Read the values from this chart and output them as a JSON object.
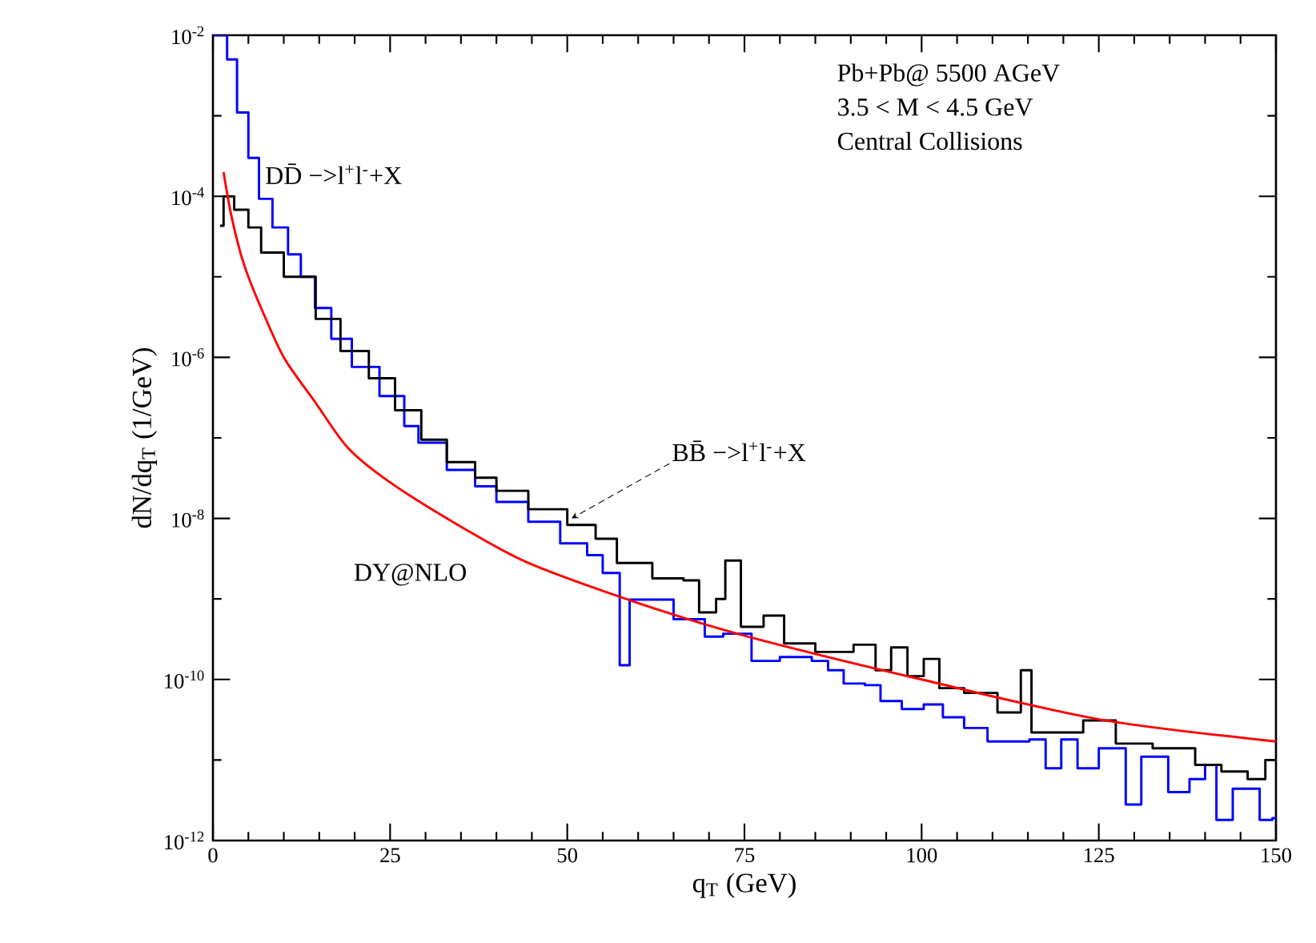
{
  "chart_data": {
    "type": "step",
    "xlabel": "q$_{T}$ (GeV)",
    "ylabel": "dN/dq$_{T}$ (1/GeV)",
    "annotations": [
      "Pb+Pb@ 5500 AGeV",
      "3.5 < M < 4.5 GeV",
      "Central Collisions",
      {
        "text": "BB̄ −>l$^{+}$l$^{-}$+X",
        "x": 50.6,
        "y": 1e-08
      }
    ],
    "log": "y",
    "xlim": [
      0,
      150
    ],
    "ylim": [
      1e-12,
      0.01
    ],
    "xticks": [
      0,
      {
        "value": 5,
        "label": null
      },
      {
        "value": 10,
        "label": null
      },
      {
        "value": 15,
        "label": null
      },
      {
        "value": 20,
        "label": null
      },
      25,
      {
        "value": 30,
        "label": null
      },
      {
        "value": 35,
        "label": null
      },
      {
        "value": 40,
        "label": null
      },
      {
        "value": 45,
        "label": null
      },
      50,
      {
        "value": 55,
        "label": null
      },
      {
        "value": 60,
        "label": null
      },
      {
        "value": 65,
        "label": null
      },
      {
        "value": 70,
        "label": null
      },
      75,
      {
        "value": 80,
        "label": null
      },
      {
        "value": 85,
        "label": null
      },
      {
        "value": 90,
        "label": null
      },
      {
        "value": 95,
        "label": null
      },
      100,
      {
        "value": 105,
        "label": null
      },
      {
        "value": 110,
        "label": null
      },
      {
        "value": 115,
        "label": null
      },
      {
        "value": 120,
        "label": null
      },
      125,
      {
        "value": 130,
        "label": null
      },
      {
        "value": 135,
        "label": null
      },
      {
        "value": 140,
        "label": null
      },
      {
        "value": 145,
        "label": null
      },
      150
    ],
    "yticks": [
      {
        "value": 1e-12,
        "label": "10$^{-12}$"
      },
      {
        "value": 1e-11,
        "label": null
      },
      {
        "value": 1e-10,
        "label": "10$^{-10}$"
      },
      {
        "value": 1e-09,
        "label": null
      },
      {
        "value": 1e-08,
        "label": "10$^{-8}$"
      },
      {
        "value": 1e-07,
        "label": null
      },
      {
        "value": 1e-06,
        "label": "10$^{-6}$"
      },
      {
        "value": 1e-05,
        "label": null
      },
      {
        "value": 0.0001,
        "label": "10$^{-4}$"
      },
      {
        "value": 0.001,
        "label": null
      },
      {
        "value": 0.01,
        "label": "10$^{-2}$"
      }
    ],
    "series": [
      {
        "name": "DD̄ −>l$^{+}$l$^{-}$+X",
        "color": "#0000ff",
        "x": [
          0,
          2,
          3.4,
          5,
          6.5,
          8.4,
          10.6,
          12.4,
          14.4,
          16.7,
          19.6,
          23.5,
          27,
          29,
          33,
          37,
          40,
          44.5,
          49,
          52.8,
          55,
          57.4,
          58.8,
          65,
          69.4,
          72,
          76,
          80,
          84.5,
          86.8,
          89,
          92,
          94.2,
          97.2,
          100.3,
          103,
          106,
          109.3,
          115.2,
          117.5,
          119.7,
          122,
          125,
          128.8,
          131,
          134.8,
          137.8,
          140,
          141.6,
          143.9,
          147.7,
          149.5,
          150
        ],
        "values": [
          0.01,
          0.005,
          0.0011,
          0.0003,
          9.3e-05,
          4.1e-05,
          1.9e-05,
          1e-05,
          4.1e-06,
          1.7e-06,
          7.6e-07,
          3.3e-07,
          1.4e-07,
          8.7e-08,
          4e-08,
          2.5e-08,
          1.6e-08,
          9.1e-09,
          4.9e-09,
          3.5e-09,
          2.1e-09,
          1.5e-10,
          9.8e-10,
          5.6e-10,
          3.4e-10,
          3.7e-10,
          1.7e-10,
          1.9e-10,
          1.7e-10,
          1.3e-10,
          8.9e-11,
          8.5e-11,
          5.4e-11,
          4.3e-11,
          4.9e-11,
          3.4e-11,
          2.5e-11,
          1.7e-11,
          1.8e-11,
          7.9e-12,
          1.8e-11,
          7.9e-12,
          1.4e-11,
          2.8e-12,
          1.1e-11,
          4e-12,
          5.8e-12,
          8.7e-12,
          1.8e-12,
          4.4e-12,
          1.8e-12,
          1.9e-12,
          1.9e-12
        ]
      },
      {
        "color": "#000000",
        "x": [
          1,
          1.5,
          3,
          5,
          6.8,
          10,
          14.5,
          18,
          22,
          25.7,
          29.4,
          33,
          37,
          40,
          44.5,
          50,
          54,
          57,
          62,
          66.4,
          68.6,
          71,
          72.3,
          74.5,
          77.7,
          80.6,
          85,
          90.4,
          93.5,
          95.7,
          98,
          100.3,
          102.5,
          106,
          110.7,
          114,
          115.5,
          122.8,
          127.4,
          132.6,
          138.6,
          142.3,
          146,
          148.5,
          150
        ],
        "values": [
          4.3e-05,
          0.0001,
          6.8e-05,
          4.1e-05,
          2e-05,
          1e-05,
          3e-06,
          1.2e-06,
          5.5e-07,
          2.2e-07,
          9.5e-08,
          5e-08,
          3.2e-08,
          2.2e-08,
          1.3e-08,
          8.3e-09,
          5.6e-09,
          2.8e-09,
          1.8e-09,
          1.7e-09,
          6.8e-10,
          1e-09,
          3e-09,
          4.5e-10,
          6.2e-10,
          2.8e-10,
          2.2e-10,
          2.7e-10,
          1.3e-10,
          2.5e-10,
          1.1e-10,
          1.8e-10,
          7.8e-11,
          6.8e-11,
          3.9e-11,
          1.3e-10,
          2.2e-11,
          3.1e-11,
          1.6e-11,
          1.4e-11,
          8.7e-12,
          7.2e-12,
          5.8e-12,
          1e-11,
          1e-11
        ]
      },
      {
        "name": "DY@NLO",
        "type": "line",
        "color": "#ff0000",
        "x": [
          1.5,
          2.5,
          3.8,
          5,
          6.8,
          10,
          14.4,
          19,
          25,
          35,
          44.5,
          60,
          75,
          100,
          125,
          150
        ],
        "values": [
          0.0002,
          6.3e-05,
          2.1e-05,
          1e-05,
          4.1e-06,
          1e-06,
          2.8e-07,
          7.6e-08,
          2.8e-08,
          7.9e-09,
          2.8e-09,
          8.9e-10,
          3.5e-10,
          1e-10,
          3.2e-11,
          1.7e-11
        ]
      }
    ]
  }
}
